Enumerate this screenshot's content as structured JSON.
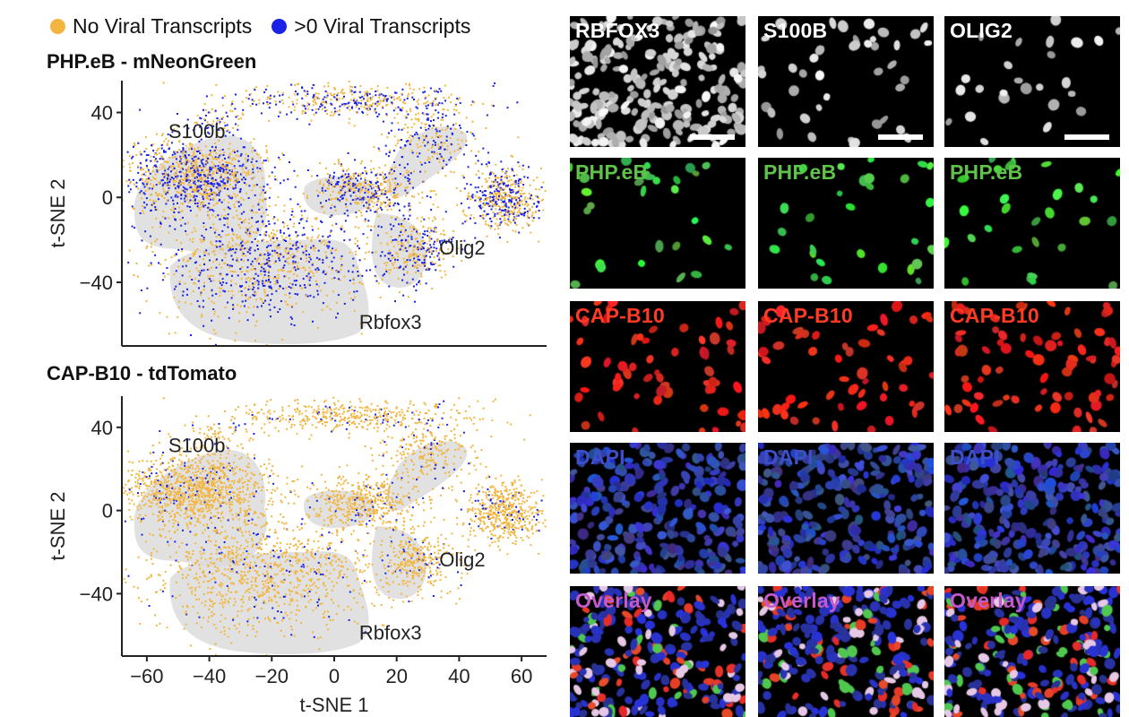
{
  "legend": [
    {
      "label": "No Viral Transcripts",
      "color": "#f2b640"
    },
    {
      "label": ">0 Viral Transcripts",
      "color": "#1a22e8"
    }
  ],
  "plots": [
    {
      "title": "PHP.eB - mNeonGreen",
      "blue_fraction": 0.45
    },
    {
      "title": "CAP-B10 - tdTomato",
      "blue_fraction": 0.1
    }
  ],
  "chart_data": {
    "type": "scatter",
    "xlabel": "t-SNE 1",
    "ylabel": "t-SNE 2",
    "xticks": [
      "−60",
      "−40",
      "−20",
      "0",
      "20",
      "40",
      "60"
    ],
    "xtick_values": [
      -60,
      -40,
      -20,
      0,
      20,
      40,
      60
    ],
    "yticks": [
      "40",
      "0",
      "−40"
    ],
    "ytick_values": [
      40,
      0,
      -40
    ],
    "xlim": [
      -68,
      68
    ],
    "ylim": [
      -70,
      55
    ],
    "cluster_labels": [
      {
        "text": "S100b",
        "x": -44,
        "y": 28
      },
      {
        "text": "Olig2",
        "x": 41,
        "y": -27
      },
      {
        "text": "Rbfox3",
        "x": 18,
        "y": -62
      }
    ],
    "clusters": [
      {
        "cx": -44,
        "cy": 10,
        "sx": 12,
        "sy": 9,
        "n": 1100,
        "region": "s100b"
      },
      {
        "cx": -24,
        "cy": -30,
        "sx": 18,
        "sy": 14,
        "n": 1000,
        "region": "rbfox3"
      },
      {
        "cx": 10,
        "cy": 4,
        "sx": 8,
        "sy": 6,
        "n": 450,
        "region": "mid"
      },
      {
        "cx": 26,
        "cy": -24,
        "sx": 6,
        "sy": 8,
        "n": 320,
        "region": "olig2"
      },
      {
        "cx": 54,
        "cy": 0,
        "sx": 6,
        "sy": 7,
        "n": 520,
        "region": "right"
      },
      {
        "cx": 6,
        "cy": 46,
        "sx": 18,
        "sy": 4,
        "n": 420,
        "region": "top"
      },
      {
        "cx": 30,
        "cy": 28,
        "sx": 8,
        "sy": 8,
        "n": 240,
        "region": "upper"
      },
      {
        "cx": -38,
        "cy": 37,
        "sx": 5,
        "sy": 4,
        "n": 60,
        "region": "small"
      }
    ]
  },
  "micrographs": {
    "columns": [
      "RBFOX3",
      "S100B",
      "OLIG2"
    ],
    "rows": [
      {
        "label": "",
        "color": "#ffffff",
        "kind": "gray"
      },
      {
        "label": "PHP.eB",
        "color": "#5fc24a",
        "kind": "green"
      },
      {
        "label": "CAP-B10",
        "color": "#ff3a25",
        "kind": "red"
      },
      {
        "label": "DAPI",
        "color": "#3d4fc9",
        "kind": "blue"
      },
      {
        "label": "Overlay",
        "color": "#c45ac9",
        "kind": "overlay"
      }
    ]
  }
}
